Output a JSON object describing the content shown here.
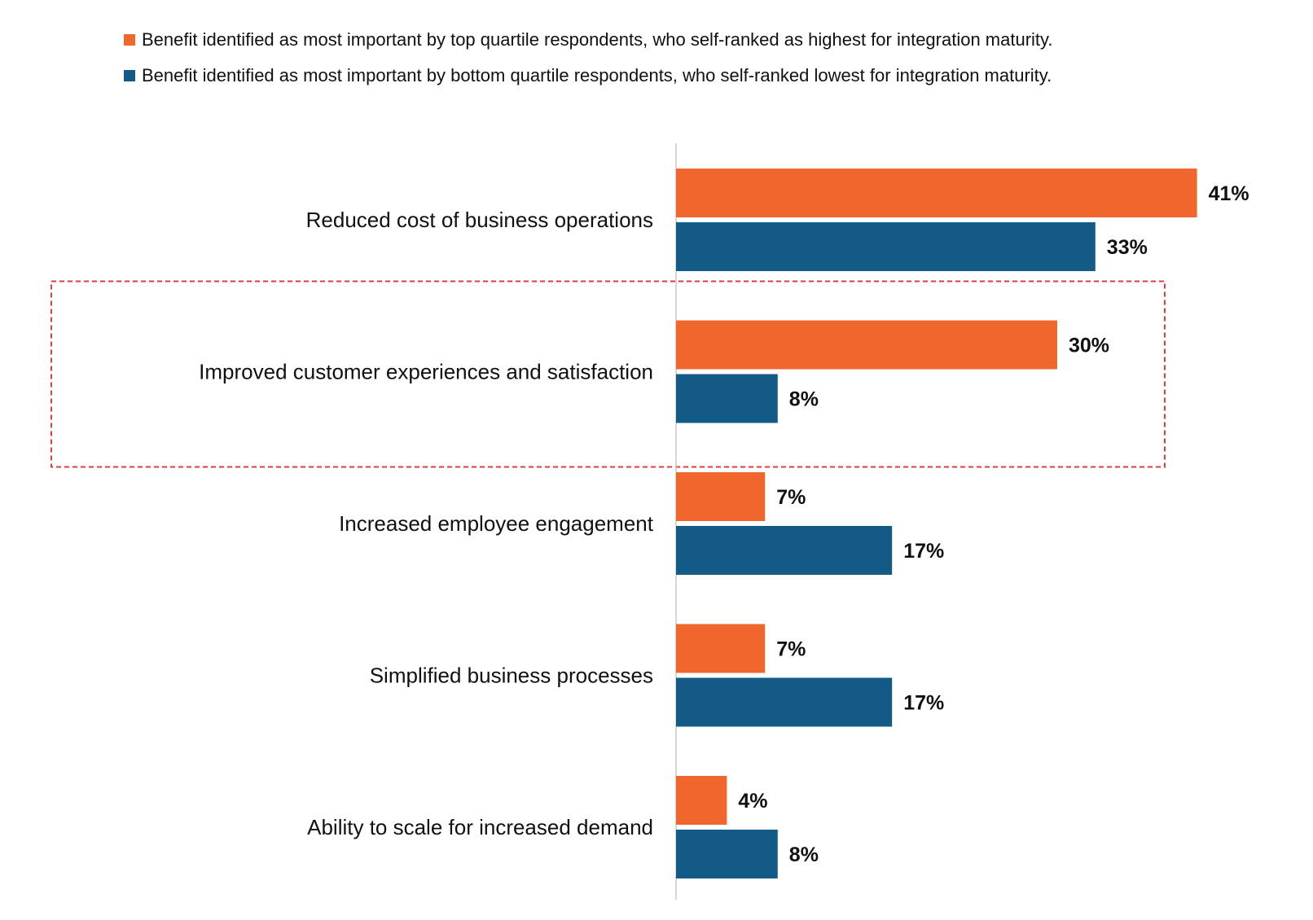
{
  "chart_data": {
    "type": "bar",
    "orientation": "horizontal",
    "categories": [
      "Reduced cost of business operations",
      "Improved customer experiences and satisfaction",
      "Increased employee engagement",
      "Simplified business processes",
      "Ability to scale for increased demand"
    ],
    "series": [
      {
        "name": "Benefit identified as most important by top quartile respondents, who self-ranked as highest for integration maturity.",
        "color": "#F0662C",
        "values": [
          41,
          30,
          7,
          7,
          4
        ],
        "labels": [
          "41%",
          "30%",
          "7%",
          "7%",
          "4%"
        ]
      },
      {
        "name": "Benefit identified as most important by bottom quartile respondents, who self-ranked lowest for integration maturity.",
        "color": "#135B86",
        "values": [
          33,
          8,
          17,
          17,
          8
        ],
        "labels": [
          "33%",
          "8%",
          "17%",
          "17%",
          "8%"
        ]
      }
    ],
    "xlim": [
      0,
      45
    ],
    "grid": false,
    "legend_position": "top",
    "highlighted_category": "Improved customer experiences and satisfaction",
    "highlight_color": "#E83A3A"
  }
}
